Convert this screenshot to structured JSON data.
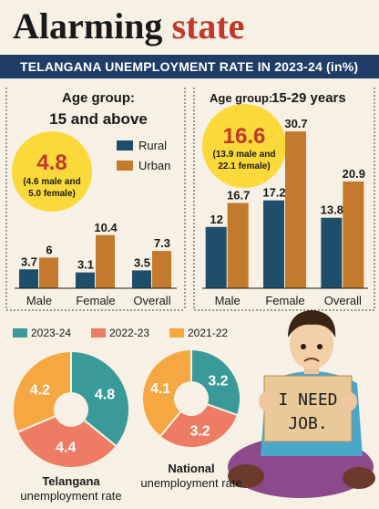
{
  "header": {
    "title_part1": "Alarming",
    "title_part2": "state",
    "subtitle": "TELANGANA UNEMPLOYMENT RATE IN 2023-24 (in%)"
  },
  "colors": {
    "rural": "#1f4e6b",
    "urban": "#c47a2c",
    "y2023_24": "#3a9a9a",
    "y2022_23": "#ee7b63",
    "y2021_22": "#f5a841",
    "highlight_circle": "#fbd93a",
    "header_band": "#1f3d66"
  },
  "left_panel": {
    "age_group_label": "Age group:",
    "age_group_value": "15 and above",
    "overall_rate": "4.8",
    "overall_breakdown_line1": "(4.6 male and",
    "overall_breakdown_line2": "5.0 female)"
  },
  "right_panel": {
    "age_group_label": "Age group:",
    "age_group_value": "15-29 years",
    "overall_rate": "16.6",
    "overall_breakdown_line1": "(13.9 male and",
    "overall_breakdown_line2": "22.1 female)"
  },
  "legend_bars": {
    "rural": "Rural",
    "urban": "Urban"
  },
  "legend_years": {
    "y1": "2023-24",
    "y2": "2022-23",
    "y3": "2021-22"
  },
  "poster": {
    "line1": "I NEED",
    "line2": "JOB."
  },
  "donut_labels": {
    "telangana_line1": "Telangana",
    "telangana_line2": "unemployment rate",
    "national_line1": "National",
    "national_line2": "unemployment rate"
  },
  "chart_data": [
    {
      "type": "bar",
      "title": "Age group: 15 and above",
      "categories": [
        "Male",
        "Female",
        "Overall"
      ],
      "series": [
        {
          "name": "Rural",
          "values": [
            3.7,
            3.1,
            3.5
          ]
        },
        {
          "name": "Urban",
          "values": [
            6.0,
            10.4,
            7.3
          ]
        }
      ]
    },
    {
      "type": "bar",
      "title": "Age group: 15-29 years",
      "categories": [
        "Male",
        "Female",
        "Overall"
      ],
      "series": [
        {
          "name": "Rural",
          "values": [
            12,
            17.2,
            13.8
          ]
        },
        {
          "name": "Urban",
          "values": [
            16.7,
            30.7,
            20.9
          ]
        }
      ]
    },
    {
      "type": "pie",
      "title": "Telangana unemployment rate",
      "categories": [
        "2023-24",
        "2022-23",
        "2021-22"
      ],
      "values": [
        4.8,
        4.4,
        4.2
      ]
    },
    {
      "type": "pie",
      "title": "National unemployment rate",
      "categories": [
        "2023-24",
        "2022-23",
        "2021-22"
      ],
      "values": [
        3.2,
        3.2,
        4.1
      ]
    }
  ]
}
